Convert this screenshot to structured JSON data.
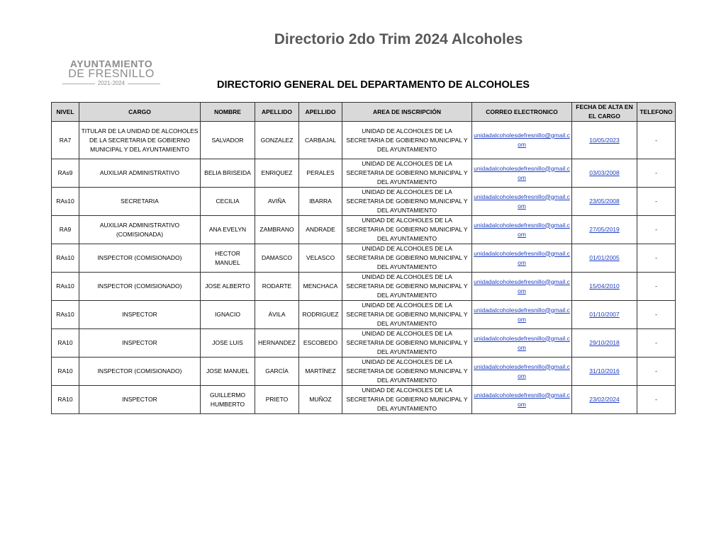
{
  "document": {
    "title": "Directorio 2do Trim 2024 Alcoholes",
    "logo": {
      "line1": "AYUNTAMIENTO",
      "line2": "DE FRESNILLO",
      "line3": "2021-2024"
    },
    "subtitle": "DIRECTORIO GENERAL DEL DEPARTAMENTO DE ALCOHOLES"
  },
  "table": {
    "headers": [
      "NIVEL",
      "CARGO",
      "NOMBRE",
      "APELLIDO",
      "APELLIDO",
      "AREA DE INSCRIPCIÓN",
      "CORREO ELECTRONICO",
      "FECHA DE ALTA EN EL CARGO",
      "TELEFONO"
    ],
    "rows": [
      [
        "RA7",
        "TITULAR DE LA UNIDAD DE ALCOHOLES DE LA SECRETARIA DE GOBIERNO MUNICIPAL Y DEL AYUNTAMIENTO",
        "SALVADOR",
        "GONZALEZ",
        "CARBAJAL",
        "UNIDAD DE ALCOHOLES DE LA SECRETARIA DE GOBIERNO MUNICIPAL Y DEL AYUNTAMIENTO",
        "unidadalcoholesdefresnillo@gmail.com",
        "10/05/2023",
        "-"
      ],
      [
        "RAs9",
        "AUXILIAR ADMINISTRATIVO",
        "BELIA BRISEIDA",
        "ENRIQUEZ",
        "PERALES",
        "UNIDAD DE ALCOHOLES DE LA SECRETARIA DE GOBIERNO MUNICIPAL Y DEL AYUNTAMIENTO",
        "unidadalcoholesdefresnillo@gmail.com",
        "03/03/2008",
        "-"
      ],
      [
        "RAs10",
        "SECRETARIA",
        "CECILIA",
        "AVIÑA",
        "IBARRA",
        "UNIDAD DE ALCOHOLES DE LA SECRETARIA DE GOBIERNO MUNICIPAL Y DEL AYUNTAMIENTO",
        "unidadalcoholesdefresnillo@gmail.com",
        "23/05/2008",
        "-"
      ],
      [
        "RA9",
        "AUXILIAR ADMINISTRATIVO (COMISIONADA)",
        "ANA EVELYN",
        "ZAMBRANO",
        "ANDRADE",
        "UNIDAD DE ALCOHOLES DE LA SECRETARIA DE GOBIERNO MUNICIPAL Y DEL AYUNTAMIENTO",
        "unidadalcoholesdefresnillo@gmail.com",
        "27/05/2019",
        "-"
      ],
      [
        "RAs10",
        "INSPECTOR (COMISIONADO)",
        "HECTOR MANUEL",
        "DAMASCO",
        "VELASCO",
        "UNIDAD DE ALCOHOLES DE LA SECRETARIA DE GOBIERNO MUNICIPAL Y DEL AYUNTAMIENTO",
        "unidadalcoholesdefresnillo@gmail.com",
        "01/01/2005",
        "-"
      ],
      [
        "RAs10",
        "INSPECTOR (COMISIONADO)",
        "JOSE ALBERTO",
        "RODARTE",
        "MENCHACA",
        "UNIDAD DE ALCOHOLES DE LA SECRETARIA DE GOBIERNO MUNICIPAL Y DEL AYUNTAMIENTO",
        "unidadalcoholesdefresnillo@gmail.com",
        "15/04/2010",
        "-"
      ],
      [
        "RAs10",
        "INSPECTOR",
        "IGNACIO",
        "ÁVILA",
        "RODRIGUEZ",
        "UNIDAD DE ALCOHOLES DE LA SECRETARIA DE GOBIERNO MUNICIPAL Y DEL AYUNTAMIENTO",
        "unidadalcoholesdefresnillo@gmail.com",
        "01/10/2007",
        "-"
      ],
      [
        "RA10",
        "INSPECTOR",
        "JOSE LUIS",
        "HERNANDEZ",
        "ESCOBEDO",
        "UNIDAD DE ALCOHOLES DE LA SECRETARIA DE GOBIERNO MUNICIPAL Y DEL AYUNTAMIENTO",
        "unidadalcoholesdefresnillo@gmail.com",
        "29/10/2018",
        "-"
      ],
      [
        "RA10",
        "INSPECTOR (COMISIONADO)",
        "JOSE MANUEL",
        "GARCÍA",
        "MARTÍNEZ",
        "UNIDAD DE ALCOHOLES DE LA SECRETARIA DE GOBIERNO MUNICIPAL Y DEL AYUNTAMIENTO",
        "unidadalcoholesdefresnillo@gmail.com",
        "31/10/2016",
        "-"
      ],
      [
        "RA10",
        "INSPECTOR",
        "GUILLERMO HUMBERTO",
        "PRIETO",
        "MUÑOZ",
        "UNIDAD DE ALCOHOLES DE LA SECRETARIA DE GOBIERNO MUNICIPAL Y DEL AYUNTAMIENTO",
        "unidadalcoholesdefresnillo@gmail.com",
        "23/02/2024",
        "-"
      ]
    ]
  }
}
